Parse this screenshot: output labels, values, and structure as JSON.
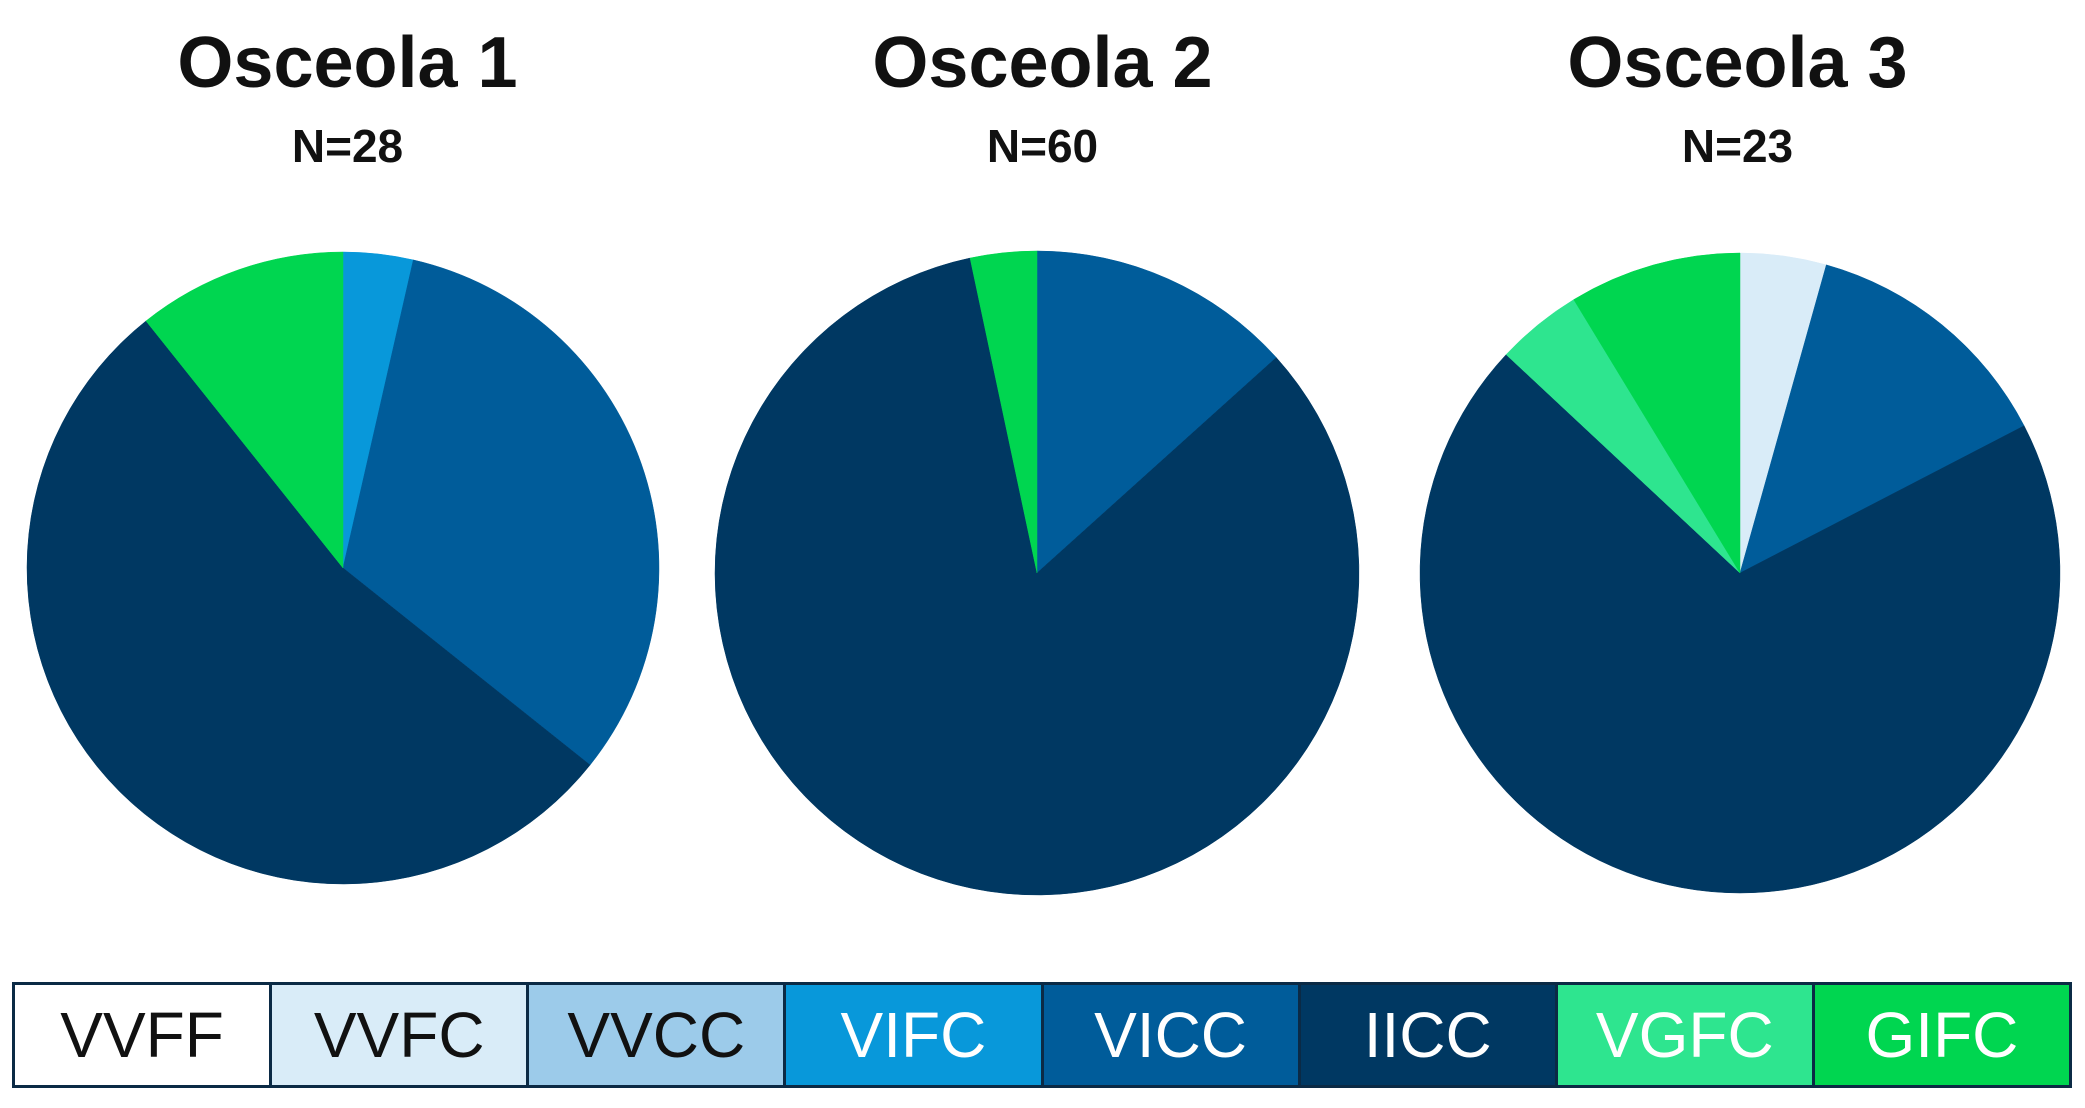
{
  "colors": {
    "VVFF": "#ffffff",
    "VVFC": "#d9ecf8",
    "VVCC": "#9ccbea",
    "VIFC": "#0898da",
    "VICC": "#005c9a",
    "IICC": "#003862",
    "VGFC": "#2ee58f",
    "GIFC": "#00d650"
  },
  "chart_data": [
    {
      "type": "pie",
      "title": "Osceola 1",
      "subtitle": "N=28",
      "start": "top (12 o'clock), clockwise",
      "slices": [
        {
          "label": "VIFC",
          "value": 1
        },
        {
          "label": "VICC",
          "value": 9
        },
        {
          "label": "IICC",
          "value": 15
        },
        {
          "label": "GIFC",
          "value": 3
        }
      ]
    },
    {
      "type": "pie",
      "title": "Osceola 2",
      "subtitle": "N=60",
      "start": "top (12 o'clock), clockwise",
      "slices": [
        {
          "label": "VICC",
          "value": 8
        },
        {
          "label": "IICC",
          "value": 50
        },
        {
          "label": "GIFC",
          "value": 2
        }
      ]
    },
    {
      "type": "pie",
      "title": "Osceola 3",
      "subtitle": "N=23",
      "start": "top (12 o'clock), clockwise",
      "slices": [
        {
          "label": "VVFC",
          "value": 1
        },
        {
          "label": "VICC",
          "value": 3
        },
        {
          "label": "IICC",
          "value": 16
        },
        {
          "label": "VGFC",
          "value": 1
        },
        {
          "label": "GIFC",
          "value": 2
        }
      ]
    }
  ],
  "legend": [
    {
      "label": "VVFF",
      "key": "VVFF"
    },
    {
      "label": "VVFC",
      "key": "VVFC"
    },
    {
      "label": "VVCC",
      "key": "VVCC"
    },
    {
      "label": "VIFC",
      "key": "VIFC"
    },
    {
      "label": "VICC",
      "key": "VICC"
    },
    {
      "label": "IICC",
      "key": "IICC"
    },
    {
      "label": "VGFC",
      "key": "VGFC"
    },
    {
      "label": "GIFC",
      "key": "GIFC"
    }
  ]
}
